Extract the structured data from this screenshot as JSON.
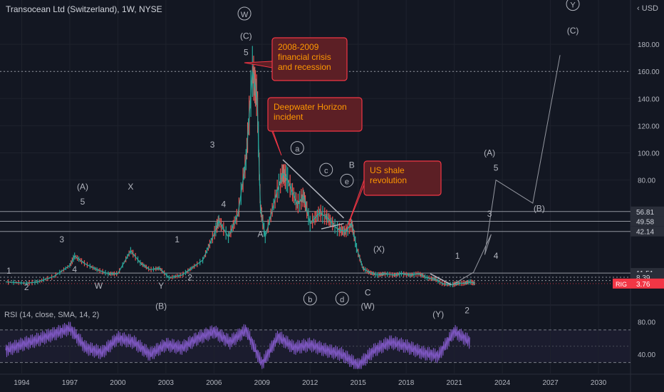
{
  "header": {
    "title": "Transocean Ltd (Switzerland), 1W, NYSE",
    "currency": "USD"
  },
  "chart_data": [
    {
      "type": "line",
      "title": "Transocean Ltd (Switzerland), 1W, NYSE",
      "ylabel": "USD",
      "ylim": [
        0,
        200
      ],
      "y_ticks": [
        180,
        160,
        140,
        120,
        100,
        80
      ],
      "y_tick_labels": [
        "180.00",
        "160.00",
        "140.00",
        "120.00",
        "100.00",
        "80.00"
      ],
      "x_ticks": [
        "1994",
        "1997",
        "2000",
        "2003",
        "2006",
        "2009",
        "2012",
        "2015",
        "2018",
        "2021",
        "2024",
        "2027",
        "2030"
      ],
      "series": [
        {
          "name": "RIG",
          "color": "#26a69a",
          "x": [
            1993.0,
            1994.3,
            1995.0,
            1996.0,
            1997.0,
            1997.3,
            1998.0,
            1998.7,
            1999.4,
            2000.0,
            2000.8,
            2001.4,
            2002.0,
            2002.6,
            2003.2,
            2004.0,
            2004.6,
            2005.3,
            2006.0,
            2006.3,
            2006.9,
            2007.5,
            2008.0,
            2008.4,
            2008.7,
            2008.9,
            2009.2,
            2009.9,
            2010.3,
            2010.6,
            2011.2,
            2011.6,
            2012.0,
            2012.6,
            2013.1,
            2013.7,
            2014.2,
            2014.6,
            2014.9,
            2015.3,
            2015.7,
            2016.2,
            2016.6,
            2017.2,
            2017.7,
            2018.3,
            2018.8,
            2019.3,
            2019.8,
            2020.3,
            2020.9,
            2021.2,
            2021.6,
            2022.0,
            2022.3
          ],
          "y": [
            5,
            4,
            5,
            9,
            17,
            24,
            18,
            14,
            11,
            11,
            28,
            19,
            14,
            15,
            8,
            10,
            15,
            21,
            40,
            50,
            38,
            55,
            95,
            160,
            140,
            60,
            38,
            70,
            85,
            80,
            62,
            68,
            48,
            56,
            52,
            44,
            42,
            48,
            30,
            15,
            12,
            10,
            11,
            10,
            11,
            10,
            11,
            8,
            7,
            3.5,
            3,
            4,
            4,
            5,
            3.76
          ]
        }
      ],
      "projection": {
        "x": [
          2020.9,
          2022.2,
          2023.3,
          2022.9,
          2023.6,
          2025.9,
          2027.6
        ],
        "y": [
          3,
          12,
          40,
          25,
          80,
          63,
          172
        ]
      },
      "horizontal_levels": [
        {
          "value": 56.81,
          "label": "56.81",
          "style": "solid"
        },
        {
          "value": 49.58,
          "label": "49.58",
          "style": "solid"
        },
        {
          "value": 42.14,
          "label": "42.14",
          "style": "solid"
        },
        {
          "value": 11.51,
          "label": "11.51",
          "style": "solid"
        },
        {
          "value": 8.39,
          "label": "8.39",
          "style": "dotted"
        },
        {
          "value": 3.76,
          "label": "3.76",
          "style": "price"
        },
        {
          "value": 160,
          "label": "",
          "style": "dotted"
        },
        {
          "value": 6,
          "label": "",
          "style": "dotted"
        }
      ],
      "price_tag": {
        "symbol": "RIG",
        "value": "3.76",
        "color": "#f23645"
      },
      "wave_labels": [
        "1",
        "2",
        "3",
        "4",
        "(A)",
        "5",
        "W",
        "X",
        "Y",
        "(B)",
        "1",
        "2",
        "3",
        "4",
        "5",
        "(C)",
        "W",
        "A",
        "a",
        "b",
        "c",
        "d",
        "e",
        "B",
        "C",
        "(W)",
        "(X)",
        "(Y)",
        "1",
        "2",
        "3",
        "4",
        "(A)",
        "5",
        "(B)",
        "(C)",
        "Y"
      ],
      "annotations": [
        {
          "lines": [
            "2008-2009",
            "financial crisis",
            "and recession"
          ]
        },
        {
          "lines": [
            "Deepwater Horizon",
            "incident"
          ]
        },
        {
          "lines": [
            "US shale",
            "revolution"
          ]
        }
      ]
    },
    {
      "type": "line",
      "title": "RSI (14, close, SMA, 14, 2)",
      "ylim": [
        20,
        90
      ],
      "y_ticks": [
        80,
        40
      ],
      "y_tick_labels": [
        "80.00",
        "40.00"
      ],
      "bands": [
        70,
        30
      ],
      "series": [
        {
          "name": "RSI",
          "color": "#7e57c2",
          "x": [
            1993.0,
            1994.0,
            1995.0,
            1996.0,
            1997.0,
            1998.0,
            1999.0,
            2000.0,
            2001.0,
            2002.0,
            2003.0,
            2004.0,
            2005.0,
            2006.0,
            2007.0,
            2008.0,
            2009.0,
            2010.0,
            2011.0,
            2012.0,
            2013.0,
            2014.0,
            2015.0,
            2016.0,
            2017.0,
            2018.0,
            2019.0,
            2020.0,
            2021.0,
            2022.0
          ],
          "y": [
            45,
            52,
            58,
            65,
            72,
            48,
            42,
            60,
            55,
            40,
            52,
            48,
            60,
            68,
            55,
            70,
            28,
            62,
            48,
            52,
            45,
            40,
            26,
            45,
            55,
            50,
            42,
            38,
            68,
            55
          ]
        }
      ]
    }
  ]
}
